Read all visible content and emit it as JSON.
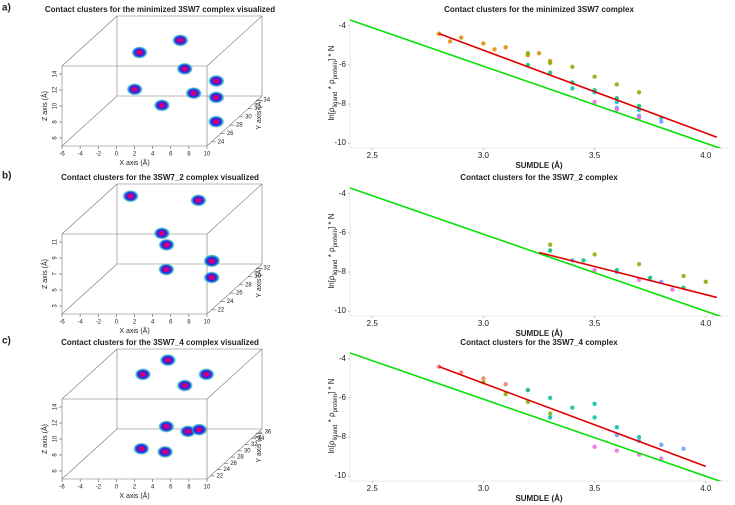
{
  "chart_data": [
    {
      "type": "scatter3d",
      "panel_label": "a)",
      "title": "Contact clusters for the minimized 3SW7 complex visualized",
      "x_label": "X axis (Å)",
      "y_label": "Y axis (Å)",
      "z_label": "Z axis (Å)",
      "xlim": [
        -6,
        10
      ],
      "xticks": [
        -6,
        -4,
        -2,
        0,
        2,
        4,
        6,
        8,
        10
      ],
      "ylim": [
        23,
        35
      ],
      "yticks": [
        24,
        26,
        28,
        30,
        32,
        34
      ],
      "zlim": [
        5,
        15
      ],
      "zticks": [
        6,
        8,
        10,
        12,
        14
      ],
      "x": [
        -2,
        2,
        4,
        6,
        8,
        9,
        10,
        3,
        0
      ],
      "y": [
        32,
        33,
        30,
        28,
        29,
        27,
        25,
        27,
        27
      ],
      "values": [
        12,
        13,
        11,
        9,
        10,
        9,
        7,
        8,
        10
      ]
    },
    {
      "type": "scatter",
      "title": "Contact clusters for the minimized 3SW7 complex",
      "x_label": "SUMDLE (Å)",
      "y_label": [
        "ln[ρ",
        "ligand",
        " * ρ",
        "protein",
        "] * N"
      ],
      "xlim": [
        2.4,
        4.1
      ],
      "xticks": [
        2.5,
        {
          "value": 3.0,
          "label": "3.0"
        },
        3.5,
        {
          "value": 4.0,
          "label": "4.0"
        }
      ],
      "ylim": [
        -10.25,
        -3.6
      ],
      "yticks": [
        -4,
        -6,
        -8,
        -10
      ],
      "series": [
        {
          "color": "#e08a00",
          "x": [
            2.8,
            2.9,
            3.0,
            3.1,
            3.2,
            3.3,
            2.85,
            3.05,
            3.25
          ],
          "values": [
            -4.4,
            -4.6,
            -4.9,
            -5.1,
            -5.5,
            -5.8,
            -4.8,
            -5.2,
            -5.4
          ]
        },
        {
          "color": "#7cae00",
          "x": [
            3.2,
            3.3,
            3.4,
            3.5,
            3.6,
            3.7
          ],
          "values": [
            -5.4,
            -5.9,
            -6.1,
            -6.6,
            -7.0,
            -7.4
          ]
        },
        {
          "color": "#00be67",
          "x": [
            3.2,
            3.3,
            3.4,
            3.5,
            3.6,
            3.7
          ],
          "values": [
            -6.0,
            -6.4,
            -6.9,
            -7.3,
            -7.7,
            -8.1
          ]
        },
        {
          "color": "#00bfc4",
          "x": [
            3.4,
            3.5,
            3.6,
            3.7,
            3.8
          ],
          "values": [
            -7.2,
            -7.4,
            -7.9,
            -8.3,
            -8.7
          ]
        },
        {
          "color": "#619cff",
          "x": [
            3.6,
            3.7,
            3.8
          ],
          "values": [
            -8.2,
            -8.6,
            -8.9
          ]
        },
        {
          "color": "#f564e3",
          "x": [
            3.5,
            3.6,
            3.7
          ],
          "values": [
            -7.9,
            -8.3,
            -8.7
          ]
        }
      ],
      "lines": [
        {
          "color": "#00e000",
          "x": [
            2.4,
            4.1
          ],
          "values": [
            -3.7,
            -10.4
          ]
        },
        {
          "color": "#e00000",
          "x": [
            2.8,
            4.05
          ],
          "values": [
            -4.4,
            -9.7
          ]
        }
      ]
    },
    {
      "type": "scatter3d",
      "panel_label": "b)",
      "title": "Contact clusters for the 3SW7_2 complex visualized",
      "x_label": "X axis (Å)",
      "y_label": "Y axis (Å)",
      "z_label": "Z axis (Å)",
      "xlim": [
        -6,
        10
      ],
      "xticks": [
        -6,
        -4,
        -2,
        0,
        2,
        4,
        6,
        8,
        10
      ],
      "ylim": [
        21,
        33
      ],
      "yticks": [
        22,
        24,
        26,
        28,
        30,
        32
      ],
      "zlim": [
        2,
        12
      ],
      "zticks": [
        3,
        5,
        7,
        9,
        11
      ],
      "x": [
        -4,
        4,
        2,
        6,
        8,
        9,
        4,
        3
      ],
      "y": [
        32,
        31,
        28,
        30,
        26,
        24,
        24,
        25
      ],
      "values": [
        11,
        11,
        7,
        4,
        6,
        5,
        6,
        10
      ]
    },
    {
      "type": "scatter",
      "title": "Contact clusters for the 3SW7_2 complex",
      "x_label": "SUMDLE (Å)",
      "y_label": [
        "ln[ρ",
        "ligand",
        " * ρ",
        "protein",
        "] * N"
      ],
      "xlim": [
        2.4,
        4.1
      ],
      "xticks": [
        2.5,
        {
          "value": 3.0,
          "label": "3.0"
        },
        3.5,
        {
          "value": 4.0,
          "label": "4.0"
        }
      ],
      "ylim": [
        -10.25,
        -3.6
      ],
      "yticks": [
        -4,
        -6,
        -8,
        -10
      ],
      "series": [
        {
          "color": "#7cae00",
          "x": [
            3.3,
            3.5,
            3.7,
            3.9,
            4.0
          ],
          "values": [
            -6.6,
            -7.1,
            -7.6,
            -8.2,
            -8.5
          ]
        },
        {
          "color": "#00be67",
          "x": [
            3.3,
            3.45,
            3.6,
            3.75,
            3.9
          ],
          "values": [
            -6.9,
            -7.4,
            -7.9,
            -8.3,
            -8.8
          ]
        },
        {
          "color": "#619cff",
          "x": [
            3.4,
            3.6,
            3.8
          ],
          "values": [
            -7.4,
            -8.0,
            -8.5
          ]
        },
        {
          "color": "#f564e3",
          "x": [
            3.5,
            3.7,
            3.85
          ],
          "values": [
            -7.9,
            -8.4,
            -8.9
          ]
        }
      ],
      "lines": [
        {
          "color": "#00e000",
          "x": [
            2.4,
            4.1
          ],
          "values": [
            -3.7,
            -10.4
          ]
        },
        {
          "color": "#e00000",
          "x": [
            3.25,
            4.05
          ],
          "values": [
            -7.0,
            -9.3
          ]
        }
      ]
    },
    {
      "type": "scatter3d",
      "panel_label": "c)",
      "title": "Contact clusters for the 3SW7_4 complex visualized",
      "x_label": "X axis (Å)",
      "y_label": "Y axis (Å)",
      "z_label": "Z axis (Å)",
      "xlim": [
        -6,
        10
      ],
      "xticks": [
        -6,
        -4,
        -2,
        0,
        2,
        4,
        6,
        8,
        10
      ],
      "ylim": [
        21,
        37
      ],
      "yticks": [
        22,
        24,
        26,
        28,
        30,
        32,
        34,
        36
      ],
      "zlim": [
        5,
        15
      ],
      "zticks": [
        6,
        8,
        10,
        12,
        14
      ],
      "x": [
        -2,
        0,
        3,
        5,
        4,
        6,
        8,
        2,
        5
      ],
      "y": [
        34,
        36,
        33,
        34,
        25,
        26,
        24,
        23,
        22
      ],
      "values": [
        13,
        14,
        12,
        13,
        10,
        9,
        10,
        8,
        8
      ]
    },
    {
      "type": "scatter",
      "title": "Contact clusters for the 3SW7_4 complex",
      "x_label": "SUMDLE (Å)",
      "y_label": [
        "ln[ρ",
        "ligand",
        " * ρ",
        "protein",
        "] * N"
      ],
      "xlim": [
        2.4,
        4.1
      ],
      "xticks": [
        2.5,
        {
          "value": 3.0,
          "label": "3.0"
        },
        3.5,
        {
          "value": 4.0,
          "label": "4.0"
        }
      ],
      "ylim": [
        -10.25,
        -3.6
      ],
      "yticks": [
        -4,
        -6,
        -8,
        -10
      ],
      "series": [
        {
          "color": "#f8766d",
          "x": [
            2.8,
            2.9,
            3.0,
            3.1,
            3.2
          ],
          "values": [
            -4.4,
            -4.7,
            -5.0,
            -5.3,
            -5.6
          ]
        },
        {
          "color": "#7cae00",
          "x": [
            3.0,
            3.1,
            3.2,
            3.3
          ],
          "values": [
            -5.2,
            -5.8,
            -6.2,
            -6.8
          ]
        },
        {
          "color": "#00bfa0",
          "x": [
            3.2,
            3.3,
            3.4,
            3.5,
            3.6,
            3.7,
            3.3,
            3.5
          ],
          "values": [
            -5.6,
            -6.0,
            -6.5,
            -7.0,
            -7.5,
            -8.0,
            -7.0,
            -6.3
          ]
        },
        {
          "color": "#619cff",
          "x": [
            3.6,
            3.7,
            3.8,
            3.9
          ],
          "values": [
            -7.9,
            -8.2,
            -8.4,
            -8.6
          ]
        },
        {
          "color": "#f564e3",
          "x": [
            3.5,
            3.6,
            3.7,
            3.8
          ],
          "values": [
            -8.5,
            -8.7,
            -8.9,
            -9.1
          ]
        }
      ],
      "lines": [
        {
          "color": "#00e000",
          "x": [
            2.4,
            4.1
          ],
          "values": [
            -3.7,
            -10.4
          ]
        },
        {
          "color": "#e00000",
          "x": [
            2.8,
            4.0
          ],
          "values": [
            -4.4,
            -9.5
          ]
        }
      ]
    }
  ]
}
